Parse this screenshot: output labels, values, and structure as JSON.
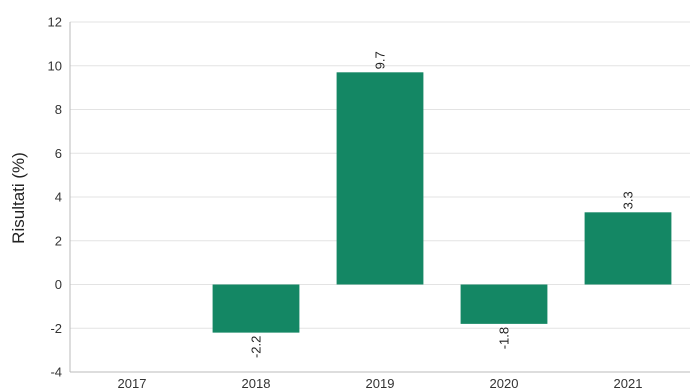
{
  "chart_data": {
    "type": "bar",
    "categories": [
      "2017",
      "2018",
      "2019",
      "2020",
      "2021"
    ],
    "values": [
      null,
      -2.2,
      9.7,
      -1.8,
      3.3
    ],
    "data_labels": [
      "",
      "-2.2",
      "9.7",
      "-1.8",
      "3.3"
    ],
    "ylabel": "Risultati (%)",
    "xlabel": "",
    "ylim": [
      -4,
      12
    ],
    "yticks": [
      "-4",
      "-2",
      "0",
      "2",
      "4",
      "6",
      "8",
      "10",
      "12"
    ],
    "bar_color": "#148764",
    "grid": true
  }
}
